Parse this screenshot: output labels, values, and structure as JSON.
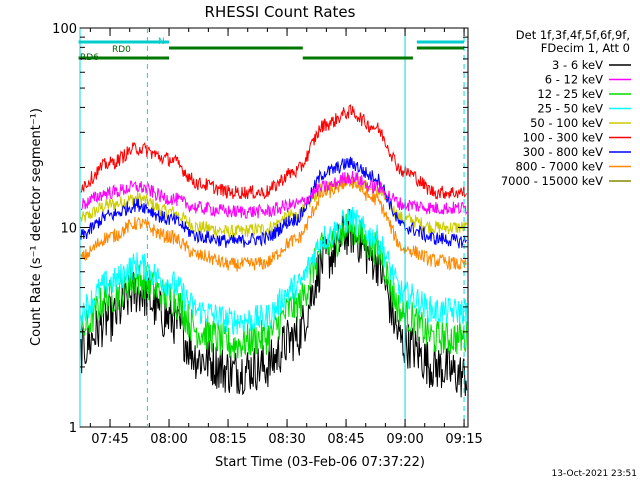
{
  "chart_data": {
    "type": "line",
    "title": "RHESSI Count Rates",
    "xlabel": "Start Time (03-Feb-06 07:37:22)",
    "ylabel": "Count Rate (s⁻¹ detector segment⁻¹)",
    "ylog": true,
    "ylim": [
      1,
      100
    ],
    "y_ticks": [
      "1",
      "10",
      "100"
    ],
    "xlim": [
      "07:37:22",
      "09:16:00"
    ],
    "x_ticks": [
      "07:45",
      "08:00",
      "08:15",
      "08:30",
      "08:45",
      "09:00",
      "09:15"
    ],
    "grid": false,
    "legend_header": [
      "Det 1f,3f,4f,5f,6f,9f,",
      "FDecim 1, Att 0"
    ],
    "legend_position": "right",
    "series": [
      {
        "name": "3 - 6 keV",
        "color": "#000000",
        "x": [
          "07:37",
          "07:45",
          "07:52",
          "08:00",
          "08:08",
          "08:16",
          "08:24",
          "08:32",
          "08:40",
          "08:46",
          "08:52",
          "09:00",
          "09:08",
          "09:15"
        ],
        "y": [
          2.4,
          3.5,
          4.8,
          3.5,
          2.2,
          1.9,
          2.0,
          2.8,
          7.0,
          9.5,
          7.0,
          2.6,
          2.0,
          1.8
        ]
      },
      {
        "name": "6 - 12 keV",
        "color": "#ff00ff",
        "x": [
          "07:37",
          "07:45",
          "07:52",
          "08:00",
          "08:08",
          "08:16",
          "08:24",
          "08:32",
          "08:40",
          "08:46",
          "08:52",
          "09:00",
          "09:08",
          "09:15"
        ],
        "y": [
          13,
          15,
          16,
          14,
          12.5,
          12,
          12,
          13,
          16,
          18,
          16,
          13,
          12.5,
          12.5
        ]
      },
      {
        "name": "12 - 25 keV",
        "color": "#00dd00",
        "x": [
          "07:37",
          "07:45",
          "07:52",
          "08:00",
          "08:08",
          "08:16",
          "08:24",
          "08:32",
          "08:40",
          "08:46",
          "08:52",
          "09:00",
          "09:08",
          "09:15"
        ],
        "y": [
          3.0,
          4.5,
          5.5,
          4.5,
          3.0,
          2.6,
          2.8,
          4.0,
          8.0,
          10,
          8.0,
          3.6,
          2.8,
          2.8
        ]
      },
      {
        "name": "25 - 50 keV",
        "color": "#00ffff",
        "x": [
          "07:37",
          "07:45",
          "07:52",
          "08:00",
          "08:08",
          "08:16",
          "08:24",
          "08:32",
          "08:40",
          "08:46",
          "08:52",
          "09:00",
          "09:08",
          "09:15"
        ],
        "y": [
          3.8,
          5.3,
          6.5,
          5.3,
          3.8,
          3.4,
          3.5,
          5.0,
          9.0,
          11,
          9.0,
          4.6,
          3.8,
          3.8
        ]
      },
      {
        "name": "50 - 100 keV",
        "color": "#cccc00",
        "x": [
          "07:37",
          "07:45",
          "07:52",
          "08:00",
          "08:08",
          "08:16",
          "08:24",
          "08:32",
          "08:40",
          "08:46",
          "08:52",
          "09:00",
          "09:08",
          "09:15"
        ],
        "y": [
          11,
          13,
          14,
          12,
          10,
          9.5,
          9.8,
          11.5,
          16,
          17.5,
          15.5,
          11,
          10,
          10
        ]
      },
      {
        "name": "100 - 300 keV",
        "color": "#ff0000",
        "x": [
          "07:37",
          "07:45",
          "07:52",
          "08:00",
          "08:08",
          "08:16",
          "08:24",
          "08:32",
          "08:40",
          "08:46",
          "08:52",
          "09:00",
          "09:08",
          "09:15"
        ],
        "y": [
          16,
          21,
          25,
          22,
          16.5,
          15,
          15,
          19,
          33,
          38,
          32,
          19,
          15,
          15
        ]
      },
      {
        "name": "300 - 800 keV",
        "color": "#0000ff",
        "x": [
          "07:37",
          "07:45",
          "07:52",
          "08:00",
          "08:08",
          "08:16",
          "08:24",
          "08:32",
          "08:40",
          "08:46",
          "08:52",
          "09:00",
          "09:08",
          "09:15"
        ],
        "y": [
          9.0,
          11.5,
          13,
          11,
          9.0,
          8.5,
          8.8,
          11,
          19,
          21,
          18,
          10,
          8.8,
          8.5
        ]
      },
      {
        "name": "800 - 7000 keV",
        "color": "#ff8800",
        "x": [
          "07:37",
          "07:45",
          "07:52",
          "08:00",
          "08:08",
          "08:16",
          "08:24",
          "08:32",
          "08:40",
          "08:46",
          "08:52",
          "09:00",
          "09:08",
          "09:15"
        ],
        "y": [
          7.0,
          9.0,
          10.5,
          9.0,
          7.2,
          6.5,
          6.6,
          8.6,
          15,
          17,
          14,
          7.8,
          6.8,
          6.5
        ]
      },
      {
        "name": "7000 - 15000 keV",
        "color": "#888800",
        "x": [],
        "y": []
      }
    ],
    "attenuator_bars": [
      {
        "label": "RD0",
        "color": "#00cccc",
        "segments": [
          [
            "07:37",
            "08:00"
          ],
          [
            "09:03",
            "09:15"
          ]
        ]
      },
      {
        "label": "RD6",
        "color": "#007700",
        "segments": [
          [
            "07:37",
            "08:00"
          ],
          [
            "08:00",
            "08:34"
          ],
          [
            "08:34",
            "09:02"
          ],
          [
            "09:03",
            "09:15"
          ]
        ]
      }
    ],
    "night_marker_label": "N",
    "vertical_lines": {
      "solid": [
        "07:37:22",
        "09:00:00"
      ],
      "dashed": [
        "07:54:30",
        "09:15:00"
      ]
    }
  },
  "timestamp": "13-Oct-2021 23:51"
}
